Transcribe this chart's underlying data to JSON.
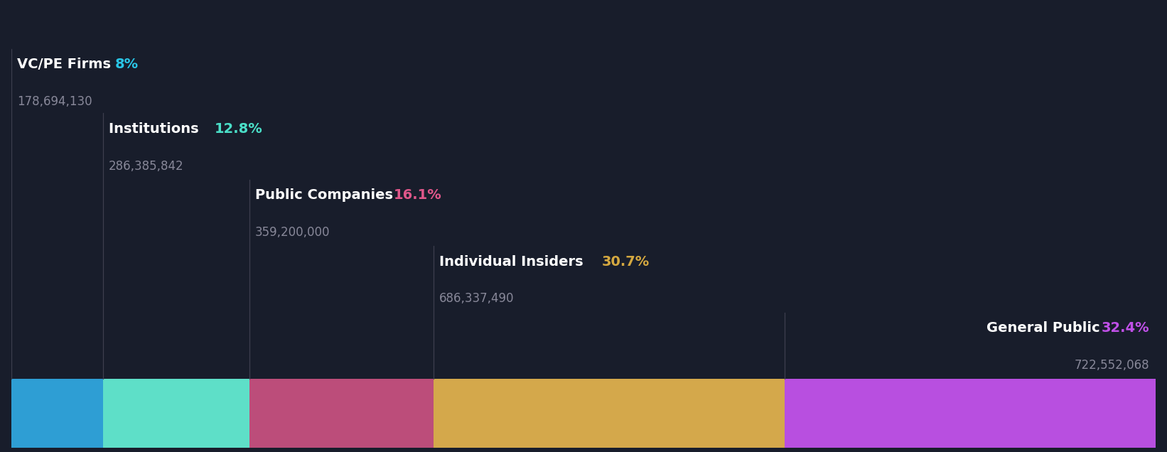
{
  "background_color": "#181d2b",
  "categories": [
    "VC/PE Firms",
    "Institutions",
    "Public Companies",
    "Individual Insiders",
    "General Public"
  ],
  "percentages": [
    8.0,
    12.8,
    16.1,
    30.7,
    32.4
  ],
  "shares": [
    "178,694,130",
    "286,385,842",
    "359,200,000",
    "686,337,490",
    "722,552,068"
  ],
  "pct_labels": [
    "8%",
    "12.8%",
    "16.1%",
    "30.7%",
    "32.4%"
  ],
  "bar_colors": [
    "#2e9ed4",
    "#5edfc8",
    "#bc4d7a",
    "#d4a84b",
    "#b84fe0"
  ],
  "pct_colors": [
    "#29c5e6",
    "#4adfc8",
    "#e0578a",
    "#d4a840",
    "#c050e8"
  ],
  "label_text_color": "#ffffff",
  "shares_text_color": "#888899",
  "divider_color": "#444455",
  "figsize": [
    16.42,
    6.36
  ],
  "dpi": 100
}
